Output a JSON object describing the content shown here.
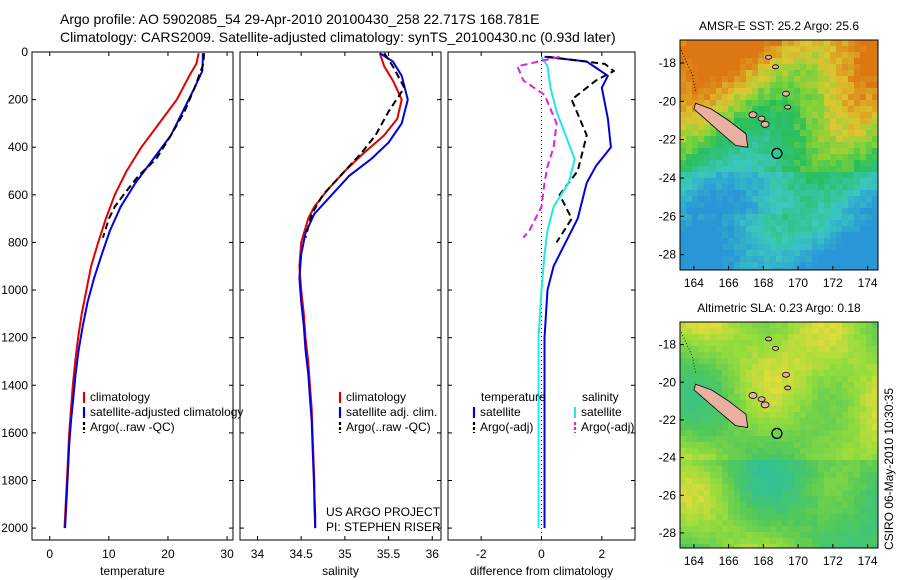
{
  "header": {
    "line1": "Argo profile: AO 5902085_54 29-Apr-2010 20100430_258 22.717S 168.781E",
    "line2": "Climatology: CARS2009. Satellite-adjusted climatology: synTS_20100430.nc (0.93d later)"
  },
  "credit": "CSIRO 06-May-2010 10:30:35",
  "colors": {
    "red": "#e00000",
    "blue": "#0000e0",
    "black": "#000000",
    "cyan": "#20e8e8",
    "magenta": "#e020e0",
    "land": "#e8b0a0"
  },
  "chart_data": [
    {
      "type": "line",
      "xlabel": "temperature",
      "xticks": [
        0,
        10,
        20,
        30
      ],
      "xlim": [
        -3,
        31
      ],
      "ylim": [
        0,
        2050
      ],
      "yticks": [
        0,
        200,
        400,
        600,
        800,
        1000,
        1200,
        1400,
        1600,
        1800,
        2000
      ],
      "y_reversed": true,
      "legend": [
        "climatology",
        "satellite-adjusted climatology",
        "Argo(..raw -QC)"
      ],
      "series": [
        {
          "name": "climatology",
          "color": "red",
          "points": [
            [
              25.2,
              5
            ],
            [
              24.8,
              50
            ],
            [
              23.6,
              100
            ],
            [
              21.5,
              200
            ],
            [
              18.5,
              300
            ],
            [
              15.5,
              400
            ],
            [
              13,
              500
            ],
            [
              11,
              600
            ],
            [
              9.5,
              700
            ],
            [
              8.2,
              800
            ],
            [
              7,
              900
            ],
            [
              6.2,
              1000
            ],
            [
              5.4,
              1100
            ],
            [
              4.8,
              1200
            ],
            [
              4.3,
              1300
            ],
            [
              3.9,
              1400
            ],
            [
              3.6,
              1500
            ],
            [
              3.3,
              1600
            ],
            [
              3.1,
              1700
            ],
            [
              2.9,
              1800
            ],
            [
              2.7,
              1900
            ],
            [
              2.5,
              2000
            ]
          ]
        },
        {
          "name": "satellite-adjusted climatology",
          "color": "blue",
          "points": [
            [
              25.9,
              5
            ],
            [
              25.9,
              30
            ],
            [
              25.8,
              80
            ],
            [
              24.5,
              150
            ],
            [
              22.5,
              250
            ],
            [
              20.5,
              350
            ],
            [
              17.5,
              450
            ],
            [
              14.5,
              550
            ],
            [
              12,
              650
            ],
            [
              10.2,
              750
            ],
            [
              8.8,
              850
            ],
            [
              7.5,
              950
            ],
            [
              6.4,
              1050
            ],
            [
              5.6,
              1150
            ],
            [
              4.9,
              1250
            ],
            [
              4.4,
              1350
            ],
            [
              4,
              1450
            ],
            [
              3.6,
              1550
            ],
            [
              3.3,
              1650
            ],
            [
              3.1,
              1750
            ],
            [
              2.9,
              1850
            ],
            [
              2.7,
              1950
            ],
            [
              2.6,
              2000
            ]
          ]
        },
        {
          "name": "Argo(..raw -QC)",
          "color": "black",
          "dashed": true,
          "points": [
            [
              26.1,
              5
            ],
            [
              26,
              50
            ],
            [
              24.5,
              150
            ],
            [
              22.8,
              250
            ],
            [
              20.5,
              350
            ],
            [
              18,
              450
            ],
            [
              15,
              520
            ],
            [
              12.5,
              600
            ],
            [
              11,
              650
            ],
            [
              10,
              700
            ],
            [
              9,
              780
            ]
          ]
        }
      ]
    },
    {
      "type": "line",
      "xlabel": "salinity",
      "xticks": [
        34,
        34.5,
        35,
        35.5,
        36
      ],
      "xlim": [
        33.8,
        36.1
      ],
      "ylim": [
        0,
        2050
      ],
      "y_reversed": true,
      "legend": [
        "climatology",
        "satellite adj. clim.",
        "Argo(..raw -QC)"
      ],
      "annotation": [
        "US ARGO PROJECT",
        "PI: STEPHEN RISER"
      ],
      "series": [
        {
          "name": "climatology",
          "color": "red",
          "points": [
            [
              35.4,
              5
            ],
            [
              35.45,
              60
            ],
            [
              35.55,
              120
            ],
            [
              35.65,
              200
            ],
            [
              35.6,
              280
            ],
            [
              35.45,
              350
            ],
            [
              35.2,
              430
            ],
            [
              35,
              500
            ],
            [
              34.8,
              580
            ],
            [
              34.65,
              650
            ],
            [
              34.58,
              700
            ],
            [
              34.5,
              800
            ],
            [
              34.48,
              900
            ],
            [
              34.5,
              1000
            ],
            [
              34.53,
              1100
            ],
            [
              34.55,
              1200
            ],
            [
              34.58,
              1300
            ],
            [
              34.6,
              1400
            ],
            [
              34.62,
              1500
            ],
            [
              34.63,
              1600
            ],
            [
              34.64,
              1700
            ],
            [
              34.65,
              1800
            ],
            [
              34.65,
              1900
            ],
            [
              34.66,
              2000
            ]
          ]
        },
        {
          "name": "satellite adj. clim.",
          "color": "blue",
          "points": [
            [
              35.4,
              5
            ],
            [
              35.55,
              40
            ],
            [
              35.65,
              100
            ],
            [
              35.72,
              200
            ],
            [
              35.65,
              300
            ],
            [
              35.5,
              380
            ],
            [
              35.3,
              450
            ],
            [
              35.05,
              520
            ],
            [
              34.85,
              600
            ],
            [
              34.65,
              680
            ],
            [
              34.55,
              760
            ],
            [
              34.5,
              850
            ],
            [
              34.48,
              950
            ],
            [
              34.5,
              1050
            ],
            [
              34.53,
              1150
            ],
            [
              34.55,
              1250
            ],
            [
              34.58,
              1350
            ],
            [
              34.6,
              1450
            ],
            [
              34.62,
              1550
            ],
            [
              34.63,
              1650
            ],
            [
              34.64,
              1750
            ],
            [
              34.65,
              1850
            ],
            [
              34.66,
              1950
            ],
            [
              34.66,
              2000
            ]
          ]
        },
        {
          "name": "Argo(..raw -QC)",
          "color": "black",
          "dashed": true,
          "points": [
            [
              35.45,
              5
            ],
            [
              35.55,
              60
            ],
            [
              35.68,
              150
            ],
            [
              35.5,
              250
            ],
            [
              35.35,
              350
            ],
            [
              35.2,
              420
            ],
            [
              35.05,
              480
            ],
            [
              34.9,
              540
            ],
            [
              34.75,
              600
            ],
            [
              34.62,
              680
            ],
            [
              34.55,
              780
            ]
          ]
        }
      ]
    },
    {
      "type": "line",
      "xlabel": "difference from climatology",
      "xticks": [
        -2,
        0,
        2
      ],
      "xlim": [
        -3.1,
        3.1
      ],
      "ylim": [
        0,
        2050
      ],
      "y_reversed": true,
      "legend_temperature": [
        "temperature",
        "satellite",
        "Argo(-adj)"
      ],
      "legend_salinity": [
        "salinity",
        "satellite",
        "Argo(-adj)"
      ],
      "series": [
        {
          "name": "temperature satellite",
          "color": "blue",
          "points": [
            [
              0.1,
              20
            ],
            [
              1.5,
              40
            ],
            [
              2.2,
              100
            ],
            [
              2,
              150
            ],
            [
              2.2,
              280
            ],
            [
              2.3,
              400
            ],
            [
              1.8,
              480
            ],
            [
              1.5,
              550
            ],
            [
              1.4,
              600
            ],
            [
              1.2,
              700
            ],
            [
              0.8,
              800
            ],
            [
              0.4,
              900
            ],
            [
              0.2,
              1000
            ],
            [
              0.1,
              1200
            ],
            [
              0.1,
              1500
            ],
            [
              0.1,
              1800
            ],
            [
              0.1,
              2000
            ]
          ]
        },
        {
          "name": "temperature Argo(-adj)",
          "color": "black",
          "dashed": true,
          "points": [
            [
              0.2,
              20
            ],
            [
              2.1,
              50
            ],
            [
              2.4,
              80
            ],
            [
              1.8,
              120
            ],
            [
              1,
              200
            ],
            [
              1.5,
              350
            ],
            [
              1.2,
              500
            ],
            [
              0.6,
              600
            ],
            [
              1,
              700
            ],
            [
              0.5,
              800
            ]
          ]
        },
        {
          "name": "salinity satellite",
          "color": "cyan",
          "points": [
            [
              0,
              20
            ],
            [
              0.2,
              60
            ],
            [
              0.3,
              150
            ],
            [
              0.5,
              250
            ],
            [
              0.8,
              350
            ],
            [
              1.1,
              450
            ],
            [
              0.9,
              550
            ],
            [
              0.4,
              650
            ],
            [
              0.2,
              750
            ],
            [
              0.1,
              850
            ],
            [
              0,
              1000
            ],
            [
              -0.1,
              1200
            ],
            [
              -0.1,
              1500
            ],
            [
              -0.1,
              1800
            ],
            [
              -0.1,
              2000
            ]
          ]
        },
        {
          "name": "salinity Argo(-adj)",
          "color": "magenta",
          "dashed": true,
          "points": [
            [
              0.6,
              20
            ],
            [
              -0.8,
              60
            ],
            [
              -0.6,
              120
            ],
            [
              0.1,
              180
            ],
            [
              0.5,
              300
            ],
            [
              0.4,
              400
            ],
            [
              0.2,
              480
            ],
            [
              0.1,
              550
            ],
            [
              0,
              650
            ],
            [
              -0.2,
              700
            ],
            [
              -0.4,
              750
            ],
            [
              -0.6,
              780
            ]
          ]
        }
      ]
    },
    {
      "type": "heatmap",
      "title": "AMSR-E SST: 25.2 Argo: 25.6",
      "xticks": [
        164,
        166,
        168,
        170,
        172,
        174
      ],
      "yticks": [
        -18,
        -20,
        -22,
        -24,
        -26,
        -28
      ],
      "xlim": [
        163.2,
        174.6
      ],
      "ylim": [
        -28.8,
        -16.8
      ],
      "argo_position": [
        168.781,
        -22.717
      ]
    },
    {
      "type": "heatmap",
      "title": "Altimetric SLA: 0.23 Argo: 0.18",
      "xticks": [
        164,
        166,
        168,
        170,
        172,
        174
      ],
      "yticks": [
        -18,
        -20,
        -22,
        -24,
        -26,
        -28
      ],
      "xlim": [
        163.2,
        174.6
      ],
      "ylim": [
        -28.8,
        -16.8
      ],
      "argo_position": [
        168.781,
        -22.717
      ]
    }
  ]
}
